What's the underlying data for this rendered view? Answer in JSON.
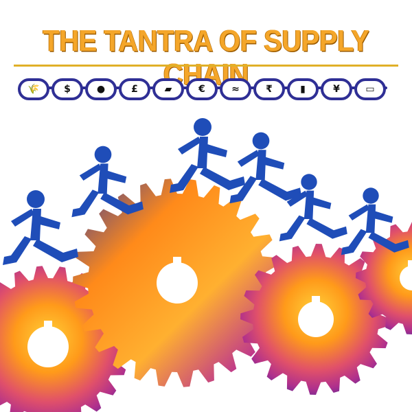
{
  "header": {
    "title": "THE TANTRA OF SUPPLY CHAIN"
  },
  "chain": {
    "links": [
      {
        "icon": "wheat-icon",
        "glyph": "🌾"
      },
      {
        "icon": "dollar-icon",
        "glyph": "$"
      },
      {
        "icon": "coffee-bean-icon",
        "glyph": "●"
      },
      {
        "icon": "pound-icon",
        "glyph": "£"
      },
      {
        "icon": "crate-icon",
        "glyph": "▰"
      },
      {
        "icon": "euro-icon",
        "glyph": "€"
      },
      {
        "icon": "fish-icon",
        "glyph": "≈"
      },
      {
        "icon": "rupee-icon",
        "glyph": "₹"
      },
      {
        "icon": "barcode-icon",
        "glyph": "▮"
      },
      {
        "icon": "yen-icon",
        "glyph": "¥"
      },
      {
        "icon": "car-icon",
        "glyph": "▭"
      }
    ]
  },
  "colors": {
    "title_orange": "#f4a62a",
    "chain_blue": "#2f2f95",
    "runner_blue": "#1f4db8",
    "gear_orange": "#ff9a1a",
    "gear_magenta": "#b0308c",
    "gear_purple": "#5a2a9a"
  },
  "art": {
    "runners": 6,
    "gears": 4
  }
}
